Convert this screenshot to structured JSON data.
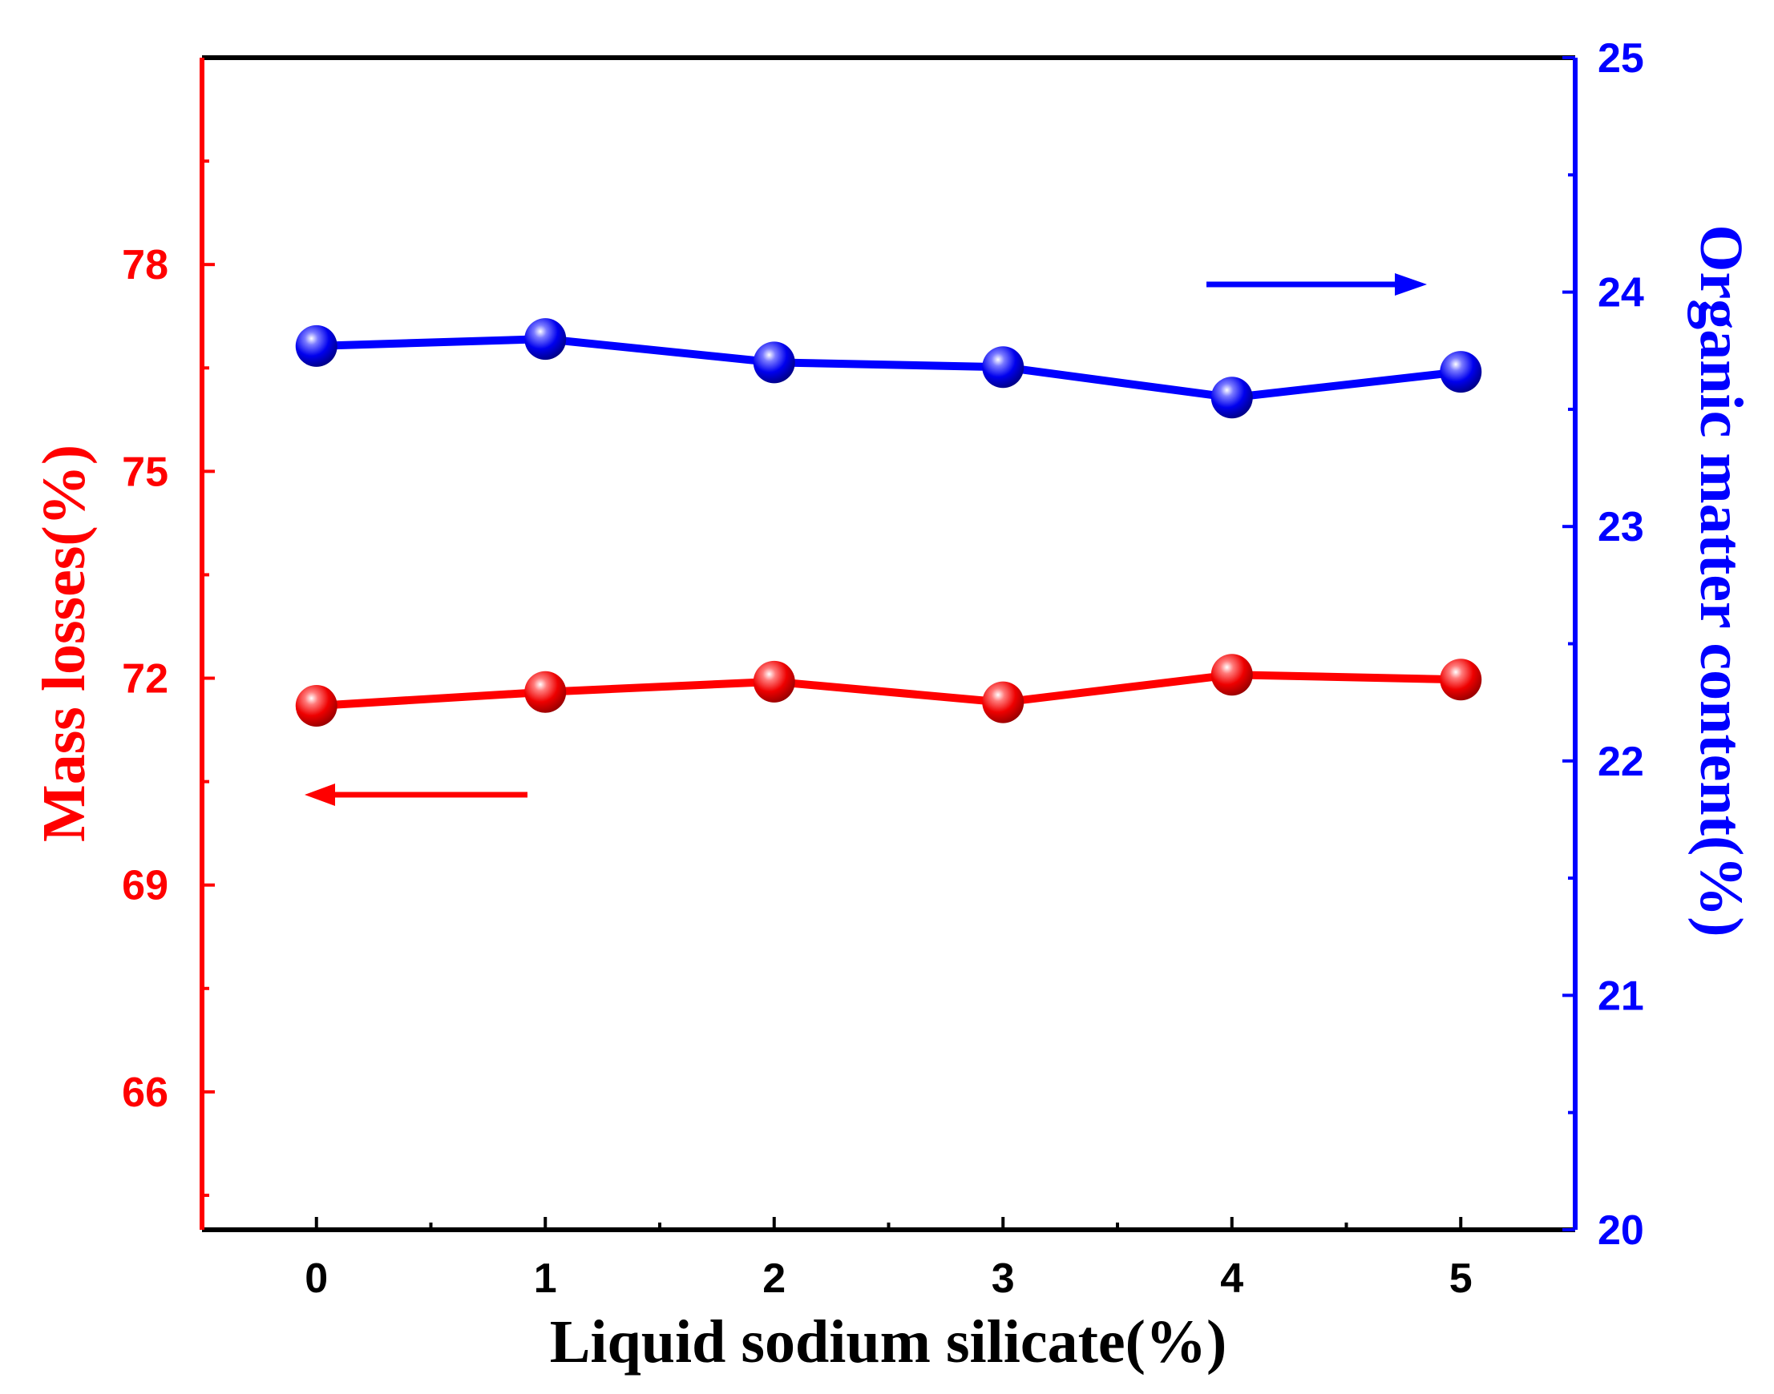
{
  "chart_data": {
    "type": "line",
    "title": "",
    "xlabel": "Liquid sodium silicate(%)",
    "ylabel_left": "Mass losses(%)",
    "ylabel_right": "Organic matter content(%)",
    "x": [
      0,
      1,
      2,
      3,
      4,
      5
    ],
    "xlim": [
      -0.5,
      5.5
    ],
    "x_ticks": [
      "0",
      "1",
      "2",
      "3",
      "4",
      "5"
    ],
    "ylim_left": [
      64.0,
      81.0
    ],
    "y_ticks_left": [
      "66",
      "69",
      "72",
      "75",
      "78"
    ],
    "y_tick_values_left": [
      66,
      69,
      72,
      75,
      78
    ],
    "ylim_right": [
      20,
      25
    ],
    "y_ticks_right": [
      "20",
      "21",
      "22",
      "23",
      "24",
      "25"
    ],
    "y_tick_values_right": [
      20,
      21,
      22,
      23,
      24,
      25
    ],
    "grid": false,
    "series": [
      {
        "name": "Mass losses",
        "axis": "left",
        "color": "#ff0000",
        "values": [
          71.6,
          71.8,
          71.95,
          71.65,
          72.05,
          71.98
        ]
      },
      {
        "name": "Organic matter content",
        "axis": "right",
        "color": "#0000ff",
        "values": [
          23.77,
          23.8,
          23.7,
          23.68,
          23.55,
          23.66
        ]
      }
    ],
    "annotations": [
      {
        "type": "arrow",
        "direction": "left",
        "series": "Mass losses",
        "color": "#ff0000"
      },
      {
        "type": "arrow",
        "direction": "right",
        "series": "Organic matter content",
        "color": "#0000ff"
      }
    ]
  }
}
